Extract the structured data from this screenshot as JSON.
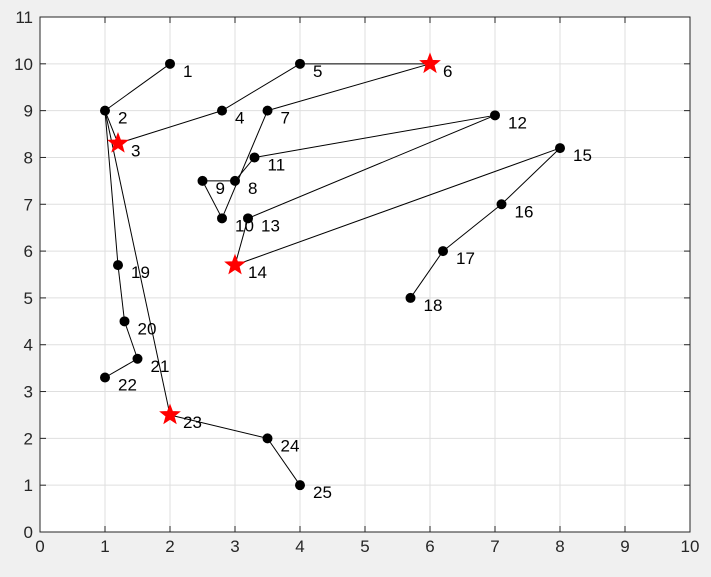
{
  "chart_data": {
    "type": "scatter",
    "title": "",
    "xlabel": "",
    "ylabel": "",
    "xlim": [
      0,
      10
    ],
    "ylim": [
      0,
      11
    ],
    "xticks": [
      0,
      1,
      2,
      3,
      4,
      5,
      6,
      7,
      8,
      9,
      10
    ],
    "yticks": [
      0,
      1,
      2,
      3,
      4,
      5,
      6,
      7,
      8,
      9,
      10,
      11
    ],
    "grid": true,
    "points": [
      {
        "id": "1",
        "x": 2.0,
        "y": 10.0
      },
      {
        "id": "2",
        "x": 1.0,
        "y": 9.0
      },
      {
        "id": "3",
        "x": 1.2,
        "y": 8.3
      },
      {
        "id": "4",
        "x": 2.8,
        "y": 9.0
      },
      {
        "id": "5",
        "x": 4.0,
        "y": 10.0
      },
      {
        "id": "6",
        "x": 6.0,
        "y": 10.0
      },
      {
        "id": "7",
        "x": 3.5,
        "y": 9.0
      },
      {
        "id": "8",
        "x": 3.0,
        "y": 7.5
      },
      {
        "id": "9",
        "x": 2.5,
        "y": 7.5
      },
      {
        "id": "10",
        "x": 2.8,
        "y": 6.7
      },
      {
        "id": "11",
        "x": 3.3,
        "y": 8.0
      },
      {
        "id": "12",
        "x": 7.0,
        "y": 8.9
      },
      {
        "id": "13",
        "x": 3.2,
        "y": 6.7
      },
      {
        "id": "14",
        "x": 3.0,
        "y": 5.7
      },
      {
        "id": "15",
        "x": 8.0,
        "y": 8.2
      },
      {
        "id": "16",
        "x": 7.1,
        "y": 7.0
      },
      {
        "id": "17",
        "x": 6.2,
        "y": 6.0
      },
      {
        "id": "18",
        "x": 5.7,
        "y": 5.0
      },
      {
        "id": "19",
        "x": 1.2,
        "y": 5.7
      },
      {
        "id": "20",
        "x": 1.3,
        "y": 4.5
      },
      {
        "id": "21",
        "x": 1.5,
        "y": 3.7
      },
      {
        "id": "22",
        "x": 1.0,
        "y": 3.3
      },
      {
        "id": "23",
        "x": 2.0,
        "y": 2.5
      },
      {
        "id": "24",
        "x": 3.5,
        "y": 2.0
      },
      {
        "id": "25",
        "x": 4.0,
        "y": 1.0
      }
    ],
    "star_points": [
      "3",
      "6",
      "14",
      "23"
    ],
    "edges": [
      [
        "1",
        "2"
      ],
      [
        "2",
        "3"
      ],
      [
        "3",
        "4"
      ],
      [
        "4",
        "5"
      ],
      [
        "5",
        "6"
      ],
      [
        "6",
        "7"
      ],
      [
        "7",
        "10"
      ],
      [
        "10",
        "9"
      ],
      [
        "9",
        "8"
      ],
      [
        "8",
        "11"
      ],
      [
        "11",
        "12"
      ],
      [
        "12",
        "13"
      ],
      [
        "13",
        "14"
      ],
      [
        "14",
        "15"
      ],
      [
        "15",
        "16"
      ],
      [
        "16",
        "17"
      ],
      [
        "17",
        "18"
      ],
      [
        "2",
        "19"
      ],
      [
        "19",
        "20"
      ],
      [
        "20",
        "21"
      ],
      [
        "21",
        "22"
      ],
      [
        "2",
        "23"
      ],
      [
        "23",
        "24"
      ],
      [
        "24",
        "25"
      ]
    ],
    "colors": {
      "figure_bg": "#f0f0f0",
      "axes_bg": "#ffffff",
      "grid": "#dfdfdf",
      "axis": "#262626",
      "marker": "#000000",
      "star": "#ff0000",
      "line": "#000000"
    }
  }
}
